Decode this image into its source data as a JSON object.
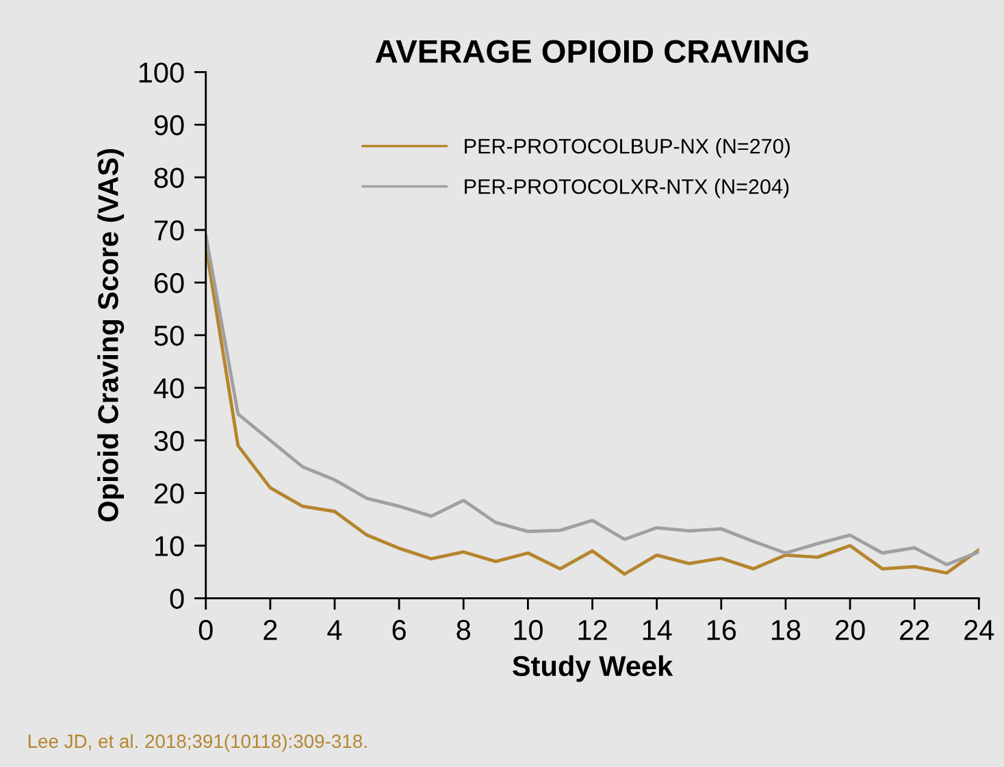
{
  "chart_data": {
    "type": "line",
    "title": "AVERAGE OPIOID CRAVING",
    "xlabel": "Study Week",
    "ylabel": "Opioid Craving Score (VAS)",
    "x": [
      0,
      1,
      2,
      3,
      4,
      5,
      6,
      7,
      8,
      9,
      10,
      11,
      12,
      13,
      14,
      15,
      16,
      17,
      18,
      19,
      20,
      21,
      22,
      23,
      24
    ],
    "series": [
      {
        "name": "PER-PROTOCOLBUP-NX (N=270)",
        "color": "#b5852e",
        "values": [
          67,
          29,
          21,
          17.5,
          16.5,
          12,
          9.5,
          7.5,
          8.8,
          7,
          8.6,
          5.6,
          9,
          4.6,
          8.2,
          6.6,
          7.6,
          5.6,
          8.2,
          7.8,
          10,
          5.6,
          6,
          4.8,
          9.2
        ]
      },
      {
        "name": "PER-PROTOCOLXR-NTX (N=204)",
        "color": "#a0a0a0",
        "values": [
          69,
          35,
          30,
          25,
          22.5,
          19,
          17.5,
          15.6,
          18.6,
          14.4,
          12.7,
          12.9,
          14.8,
          11.2,
          13.4,
          12.8,
          13.2,
          10.8,
          8.6,
          10.4,
          12,
          8.6,
          9.6,
          6.4,
          8.8
        ]
      }
    ],
    "xlim": [
      0,
      24
    ],
    "xticks": [
      0,
      2,
      4,
      6,
      8,
      10,
      12,
      14,
      16,
      18,
      20,
      22,
      24
    ],
    "ylim": [
      0,
      100
    ],
    "yticks": [
      0,
      10,
      20,
      30,
      40,
      50,
      60,
      70,
      80,
      90,
      100
    ],
    "grid": false,
    "legend": "top",
    "marker": "none",
    "line_style": "solid",
    "annotations": [
      "Lee JD, et al. 2018;391(10118):309-318."
    ]
  }
}
